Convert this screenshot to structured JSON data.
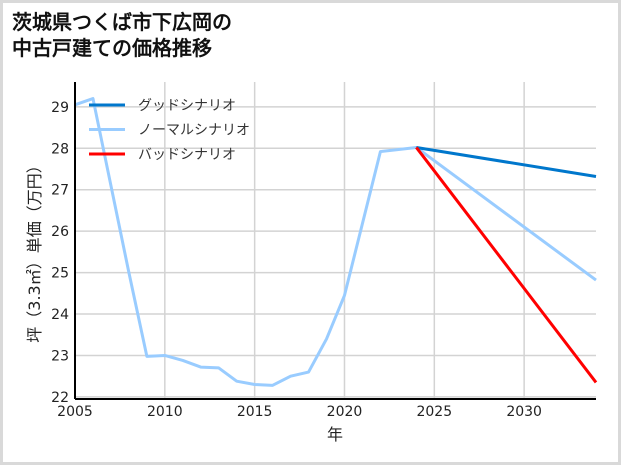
{
  "chart_data": {
    "type": "line",
    "title_lines": [
      "茨城県つくば市下広岡の",
      "中古戸建ての価格推移"
    ],
    "xlabel": "年",
    "ylabel": "坪（3.3㎡）単価（万円）",
    "xlim": [
      2005,
      2034
    ],
    "ylim": [
      21.95,
      29.6
    ],
    "xticks": [
      2005,
      2010,
      2015,
      2020,
      2025,
      2030
    ],
    "yticks": [
      22,
      23,
      24,
      25,
      26,
      27,
      28,
      29
    ],
    "grid": true,
    "legend_position": "top-left",
    "series": [
      {
        "name": "グッドシナリオ",
        "color": "#0077cc",
        "x": [
          2024,
          2034
        ],
        "y": [
          28.02,
          27.32
        ]
      },
      {
        "name": "ノーマルシナリオ",
        "color": "#99ccff",
        "x": [
          2005,
          2006,
          2008,
          2009,
          2010,
          2011,
          2012,
          2013,
          2014,
          2015,
          2016,
          2017,
          2018,
          2019,
          2020,
          2022,
          2024,
          2034
        ],
        "y": [
          29.05,
          29.2,
          25.0,
          22.98,
          23.0,
          22.88,
          22.72,
          22.7,
          22.38,
          22.3,
          22.28,
          22.5,
          22.6,
          23.4,
          24.45,
          27.92,
          28.02,
          24.82
        ]
      },
      {
        "name": "バッドシナリオ",
        "color": "#ff0000",
        "x": [
          2024,
          2034
        ],
        "y": [
          28.02,
          22.35
        ]
      }
    ]
  }
}
